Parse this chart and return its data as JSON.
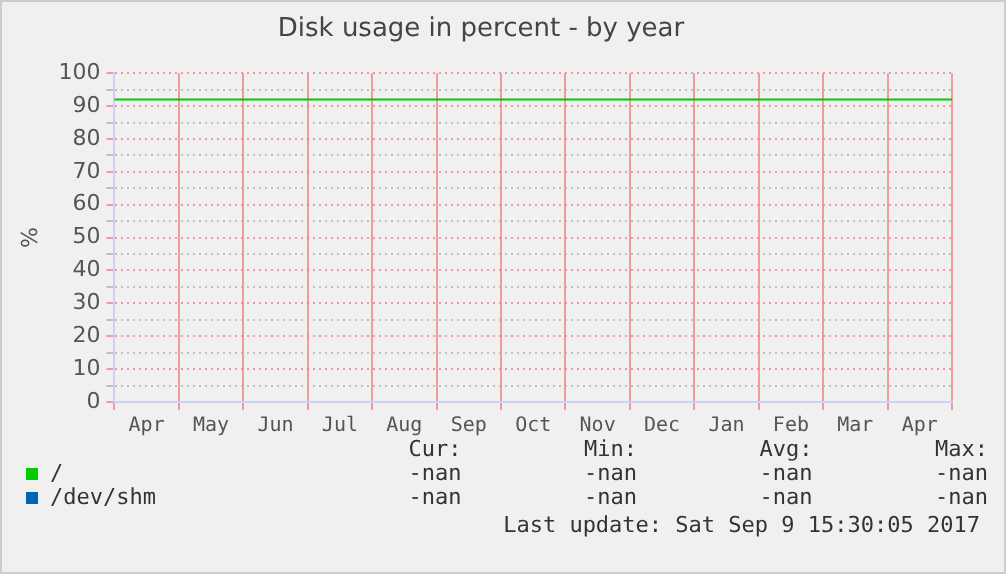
{
  "chart_data": {
    "type": "line",
    "title": "Disk usage in percent - by year",
    "ylabel": "%",
    "categories": [
      "Apr",
      "May",
      "Jun",
      "Jul",
      "Aug",
      "Sep",
      "Oct",
      "Nov",
      "Dec",
      "Jan",
      "Feb",
      "Mar",
      "Apr"
    ],
    "series": [
      {
        "name": "/",
        "color": "#00cc00",
        "values": [
          null,
          null,
          null,
          null,
          null,
          null,
          null,
          null,
          null,
          null,
          null,
          null,
          null
        ]
      },
      {
        "name": "/dev/shm",
        "color": "#0066b3",
        "values": [
          null,
          null,
          null,
          null,
          null,
          null,
          null,
          null,
          null,
          null,
          null,
          null,
          null
        ]
      }
    ],
    "ylim": [
      0,
      100
    ],
    "yticks": [
      0,
      {
        "value": 5,
        "label": null
      },
      10,
      {
        "value": 15,
        "label": null
      },
      20,
      {
        "value": 25,
        "label": null
      },
      30,
      {
        "value": 35,
        "label": null
      },
      40,
      {
        "value": 45,
        "label": null
      },
      50,
      {
        "value": 55,
        "label": null
      },
      60,
      {
        "value": 65,
        "label": null
      },
      70,
      {
        "value": 75,
        "label": null
      },
      80,
      {
        "value": 85,
        "label": null
      },
      90,
      {
        "value": 95,
        "label": null
      },
      100
    ],
    "ref_lines": [
      {
        "axis": "y",
        "value": 92,
        "color": "#00cc00"
      }
    ],
    "grid": true,
    "legend": "bottom",
    "annotations": [
      "Cur:",
      "Min:",
      "Avg:",
      "Max:",
      "-nan",
      "-nan",
      "-nan",
      "-nan",
      "-nan",
      "-nan",
      "-nan",
      "-nan",
      "Last update: Sat Sep  9 15:30:05 2017"
    ]
  }
}
